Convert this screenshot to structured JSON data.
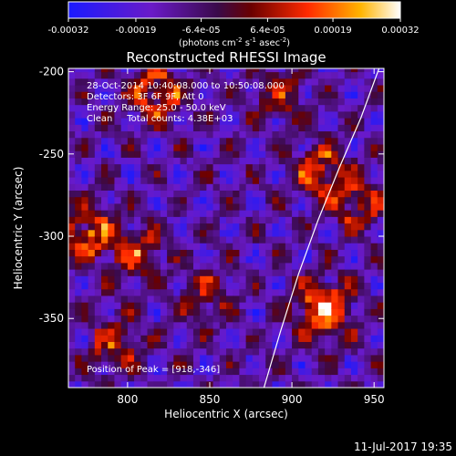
{
  "colorbar": {
    "tick_labels": [
      "-0.00032",
      "-0.00019",
      "-6.4e-05",
      "6.4e-05",
      "0.00019",
      "0.00032"
    ],
    "tick_values": [
      -0.00032,
      -0.00019,
      -6.4e-05,
      6.4e-05,
      0.00019,
      0.00032
    ],
    "range": [
      -0.00032,
      0.00032
    ],
    "units_prefix": "(photons cm",
    "units_sup1": "-2",
    "units_mid": " s",
    "units_sup2": "-1",
    "units_mid2": " asec",
    "units_sup3": "-2",
    "units_suffix": ")",
    "colormap": "blue-purple-red-yellow-white"
  },
  "chart_data": {
    "type": "heatmap",
    "title": "Reconstructed RHESSI Image",
    "xlabel": "Heliocentric X (arcsec)",
    "ylabel": "Heliocentric Y (arcsec)",
    "xlim": [
      764,
      956
    ],
    "ylim": [
      -392,
      -198
    ],
    "xticks": [
      800,
      850,
      900,
      950
    ],
    "yticks": [
      -200,
      -250,
      -300,
      -350
    ],
    "xtick_labels": [
      "800",
      "850",
      "900",
      "950"
    ],
    "ytick_labels": [
      "-200",
      "-250",
      "-300",
      "-350"
    ],
    "grid": false,
    "limb_curve": [
      [
        883,
        -392
      ],
      [
        893,
        -358
      ],
      [
        904,
        -323
      ],
      [
        916,
        -290
      ],
      [
        929,
        -258
      ],
      [
        942,
        -228
      ],
      [
        953,
        -198
      ]
    ],
    "bright_sources": [
      {
        "x": 918,
        "y": -346,
        "intensity": 1.0
      },
      {
        "x": 816,
        "y": -215,
        "intensity": 0.75
      },
      {
        "x": 916,
        "y": -262,
        "intensity": 0.7
      },
      {
        "x": 775,
        "y": -300,
        "intensity": 0.75
      },
      {
        "x": 804,
        "y": -312,
        "intensity": 0.55
      },
      {
        "x": 938,
        "y": -282,
        "intensity": 0.6
      },
      {
        "x": 790,
        "y": -368,
        "intensity": 0.55
      },
      {
        "x": 890,
        "y": -215,
        "intensity": 0.5
      },
      {
        "x": 845,
        "y": -338,
        "intensity": 0.45
      }
    ],
    "info_lines": [
      "28-Oct-2014 10:40:08.000 to 10:50:08.000",
      "Detectors: 3F 6F 9F, Att 0",
      "Energy Range: 25.0 - 50.0 keV",
      "Clean     Total counts: 4.38E+03"
    ],
    "peak_label": "Position of Peak = [918,-346]",
    "peak": [
      918,
      -346
    ]
  },
  "timestamp": "11-Jul-2017 19:35"
}
